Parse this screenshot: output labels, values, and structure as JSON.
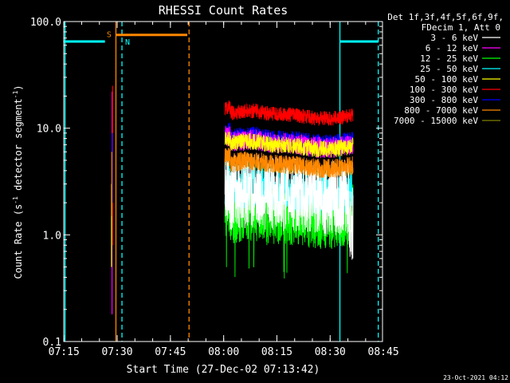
{
  "chart_data": {
    "type": "line",
    "title": "RHESSI Count Rates",
    "xlabel": "Start Time (27-Dec-02 07:13:42)",
    "ylabel_main": "Count Rate (s",
    "ylabel_sup1": "-1",
    "ylabel_mid": " detector segment",
    "ylabel_sup2": "-1",
    "ylabel_end": ")",
    "y_scale": "log",
    "ylim": [
      0.1,
      100
    ],
    "xlim_minutes": [
      7.2,
      97.0
    ],
    "x_ticks": [
      {
        "label": "07:15",
        "t": 7.25
      },
      {
        "label": "07:30",
        "t": 22.25
      },
      {
        "label": "07:45",
        "t": 37.25
      },
      {
        "label": "08:00",
        "t": 52.25
      },
      {
        "label": "08:15",
        "t": 67.25
      },
      {
        "label": "08:30",
        "t": 82.25
      },
      {
        "label": "08:45",
        "t": 97.25
      }
    ],
    "y_ticks": [
      {
        "label": "0.1",
        "v": 0.1
      },
      {
        "label": "1.0",
        "v": 1.0
      },
      {
        "label": "10.0",
        "v": 10.0
      },
      {
        "label": "100.0",
        "v": 100.0
      }
    ],
    "legend_header": [
      "Det 1f,3f,4f,5f,6f,9f,",
      "FDecim 1, Att 0"
    ],
    "legend_position": "top-right-outside",
    "series": [
      {
        "name": "3 - 6 keV",
        "color": "#ffffff",
        "level": 2.4,
        "noise": 0.35
      },
      {
        "name": "6 - 12 keV",
        "color": "#ff00ff",
        "level": 7.2,
        "noise": 0.1
      },
      {
        "name": "12 - 25 keV",
        "color": "#00ff00",
        "level": 1.6,
        "noise": 0.3
      },
      {
        "name": "25 - 50 keV",
        "color": "#00ffff",
        "level": 2.6,
        "noise": 0.2
      },
      {
        "name": "50 - 100 keV",
        "color": "#ffff00",
        "level": 7.0,
        "noise": 0.08
      },
      {
        "name": "100 - 300 keV",
        "color": "#ff0000",
        "level": 13.5,
        "noise": 0.07
      },
      {
        "name": "300 - 800 keV",
        "color": "#0000ff",
        "level": 8.2,
        "noise": 0.07
      },
      {
        "name": "800 - 7000 keV",
        "color": "#ff8800",
        "level": 4.6,
        "noise": 0.09
      },
      {
        "name": "7000 - 15000 keV",
        "color": "#808000",
        "level": 4.2,
        "noise": 0.05
      }
    ],
    "data_window_minutes": [
      52.6,
      88.7
    ],
    "spike_minute": 20.8,
    "spike_range": [
      0.18,
      25
    ],
    "saa_bar": {
      "label": "S",
      "t_start": 22.0,
      "t_end": 42.0,
      "y": 75,
      "color": "#ff8800"
    },
    "night_bars": [
      {
        "t_start": 7.2,
        "t_end": 18.8,
        "y": 65,
        "color": "#00ffff"
      },
      {
        "t_start": 85.0,
        "t_end": 95.8,
        "y": 65,
        "color": "#00ffff"
      }
    ],
    "night_label": "N",
    "vlines": [
      {
        "t": 7.55,
        "color": "#00ffff",
        "dash": false
      },
      {
        "t": 21.9,
        "color": "#ff8800",
        "dash": false
      },
      {
        "t": 23.6,
        "color": "#00ffff",
        "dash": true
      },
      {
        "t": 42.5,
        "color": "#ff8800",
        "dash": true
      },
      {
        "t": 85.0,
        "color": "#00ffff",
        "dash": false
      },
      {
        "t": 95.8,
        "color": "#00ffff",
        "dash": true
      }
    ],
    "grid": false
  },
  "footer_timestamp": "23-Oct-2021 04:12"
}
